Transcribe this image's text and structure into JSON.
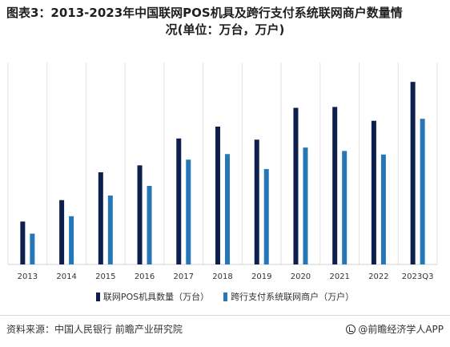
{
  "title": {
    "line1": "图表3：2013-2023年中国联网POS机具及跨行支付系统联网商户数量情",
    "line2": "况(单位：万台，万户)"
  },
  "chart_data": {
    "type": "bar",
    "categories": [
      "2013",
      "2014",
      "2015",
      "2016",
      "2017",
      "2018",
      "2019",
      "2020",
      "2021",
      "2022",
      "2023Q3"
    ],
    "series": [
      {
        "name": "联网POS机具数量（万台）",
        "color": "#0d1f4c",
        "values": [
          1063,
          1593,
          2282,
          2454,
          3119,
          3414,
          3090,
          3878,
          3900,
          3557,
          4520
        ]
      },
      {
        "name": "跨行支付系统联网商户（万户）",
        "color": "#2577b8",
        "values": [
          763,
          1194,
          1707,
          1944,
          2595,
          2733,
          2362,
          2894,
          2810,
          2722,
          3607
        ]
      }
    ],
    "ylim": [
      0,
      5000
    ],
    "grid": "vertical",
    "legend": "bottom"
  },
  "source": "资料来源：中国人民银行 前瞻产业研究院",
  "brand": "@前瞻经济学人APP"
}
